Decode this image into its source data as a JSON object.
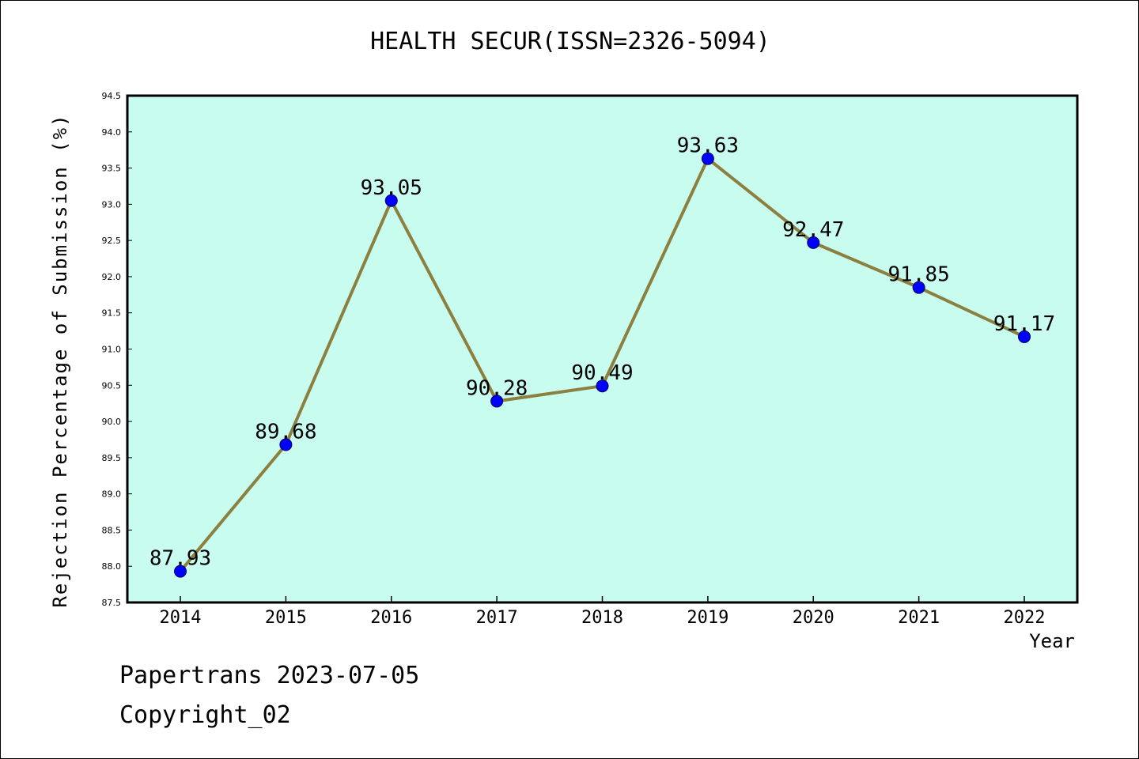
{
  "chart_data": {
    "type": "line",
    "title": "HEALTH SECUR(ISSN=2326-5094)",
    "xlabel": "Year",
    "ylabel": "Rejection Percentage of Submission (%)",
    "categories": [
      "2014",
      "2015",
      "2016",
      "2017",
      "2018",
      "2019",
      "2020",
      "2021",
      "2022"
    ],
    "values": [
      87.93,
      89.68,
      93.05,
      90.28,
      90.49,
      93.63,
      92.47,
      91.85,
      91.17
    ],
    "data_labels": [
      "87.93",
      "89.68",
      "93.05",
      "90.28",
      "90.49",
      "93.63",
      "92.47",
      "91.85",
      "91.17"
    ],
    "ylim": [
      87.5,
      94.5
    ],
    "yticks": [
      "87.5",
      "88.0",
      "88.5",
      "89.0",
      "89.5",
      "90.0",
      "90.5",
      "91.0",
      "91.5",
      "92.0",
      "92.5",
      "93.0",
      "93.5",
      "94.0",
      "94.5"
    ],
    "grid": false,
    "legend": "none",
    "colors": {
      "plot_background": "#c8fcee",
      "line": "#8b8040",
      "marker": "#0000ff"
    }
  },
  "footer": {
    "date_text": "Papertrans 2023-07-05",
    "copyright_text": "Copyright_02"
  }
}
